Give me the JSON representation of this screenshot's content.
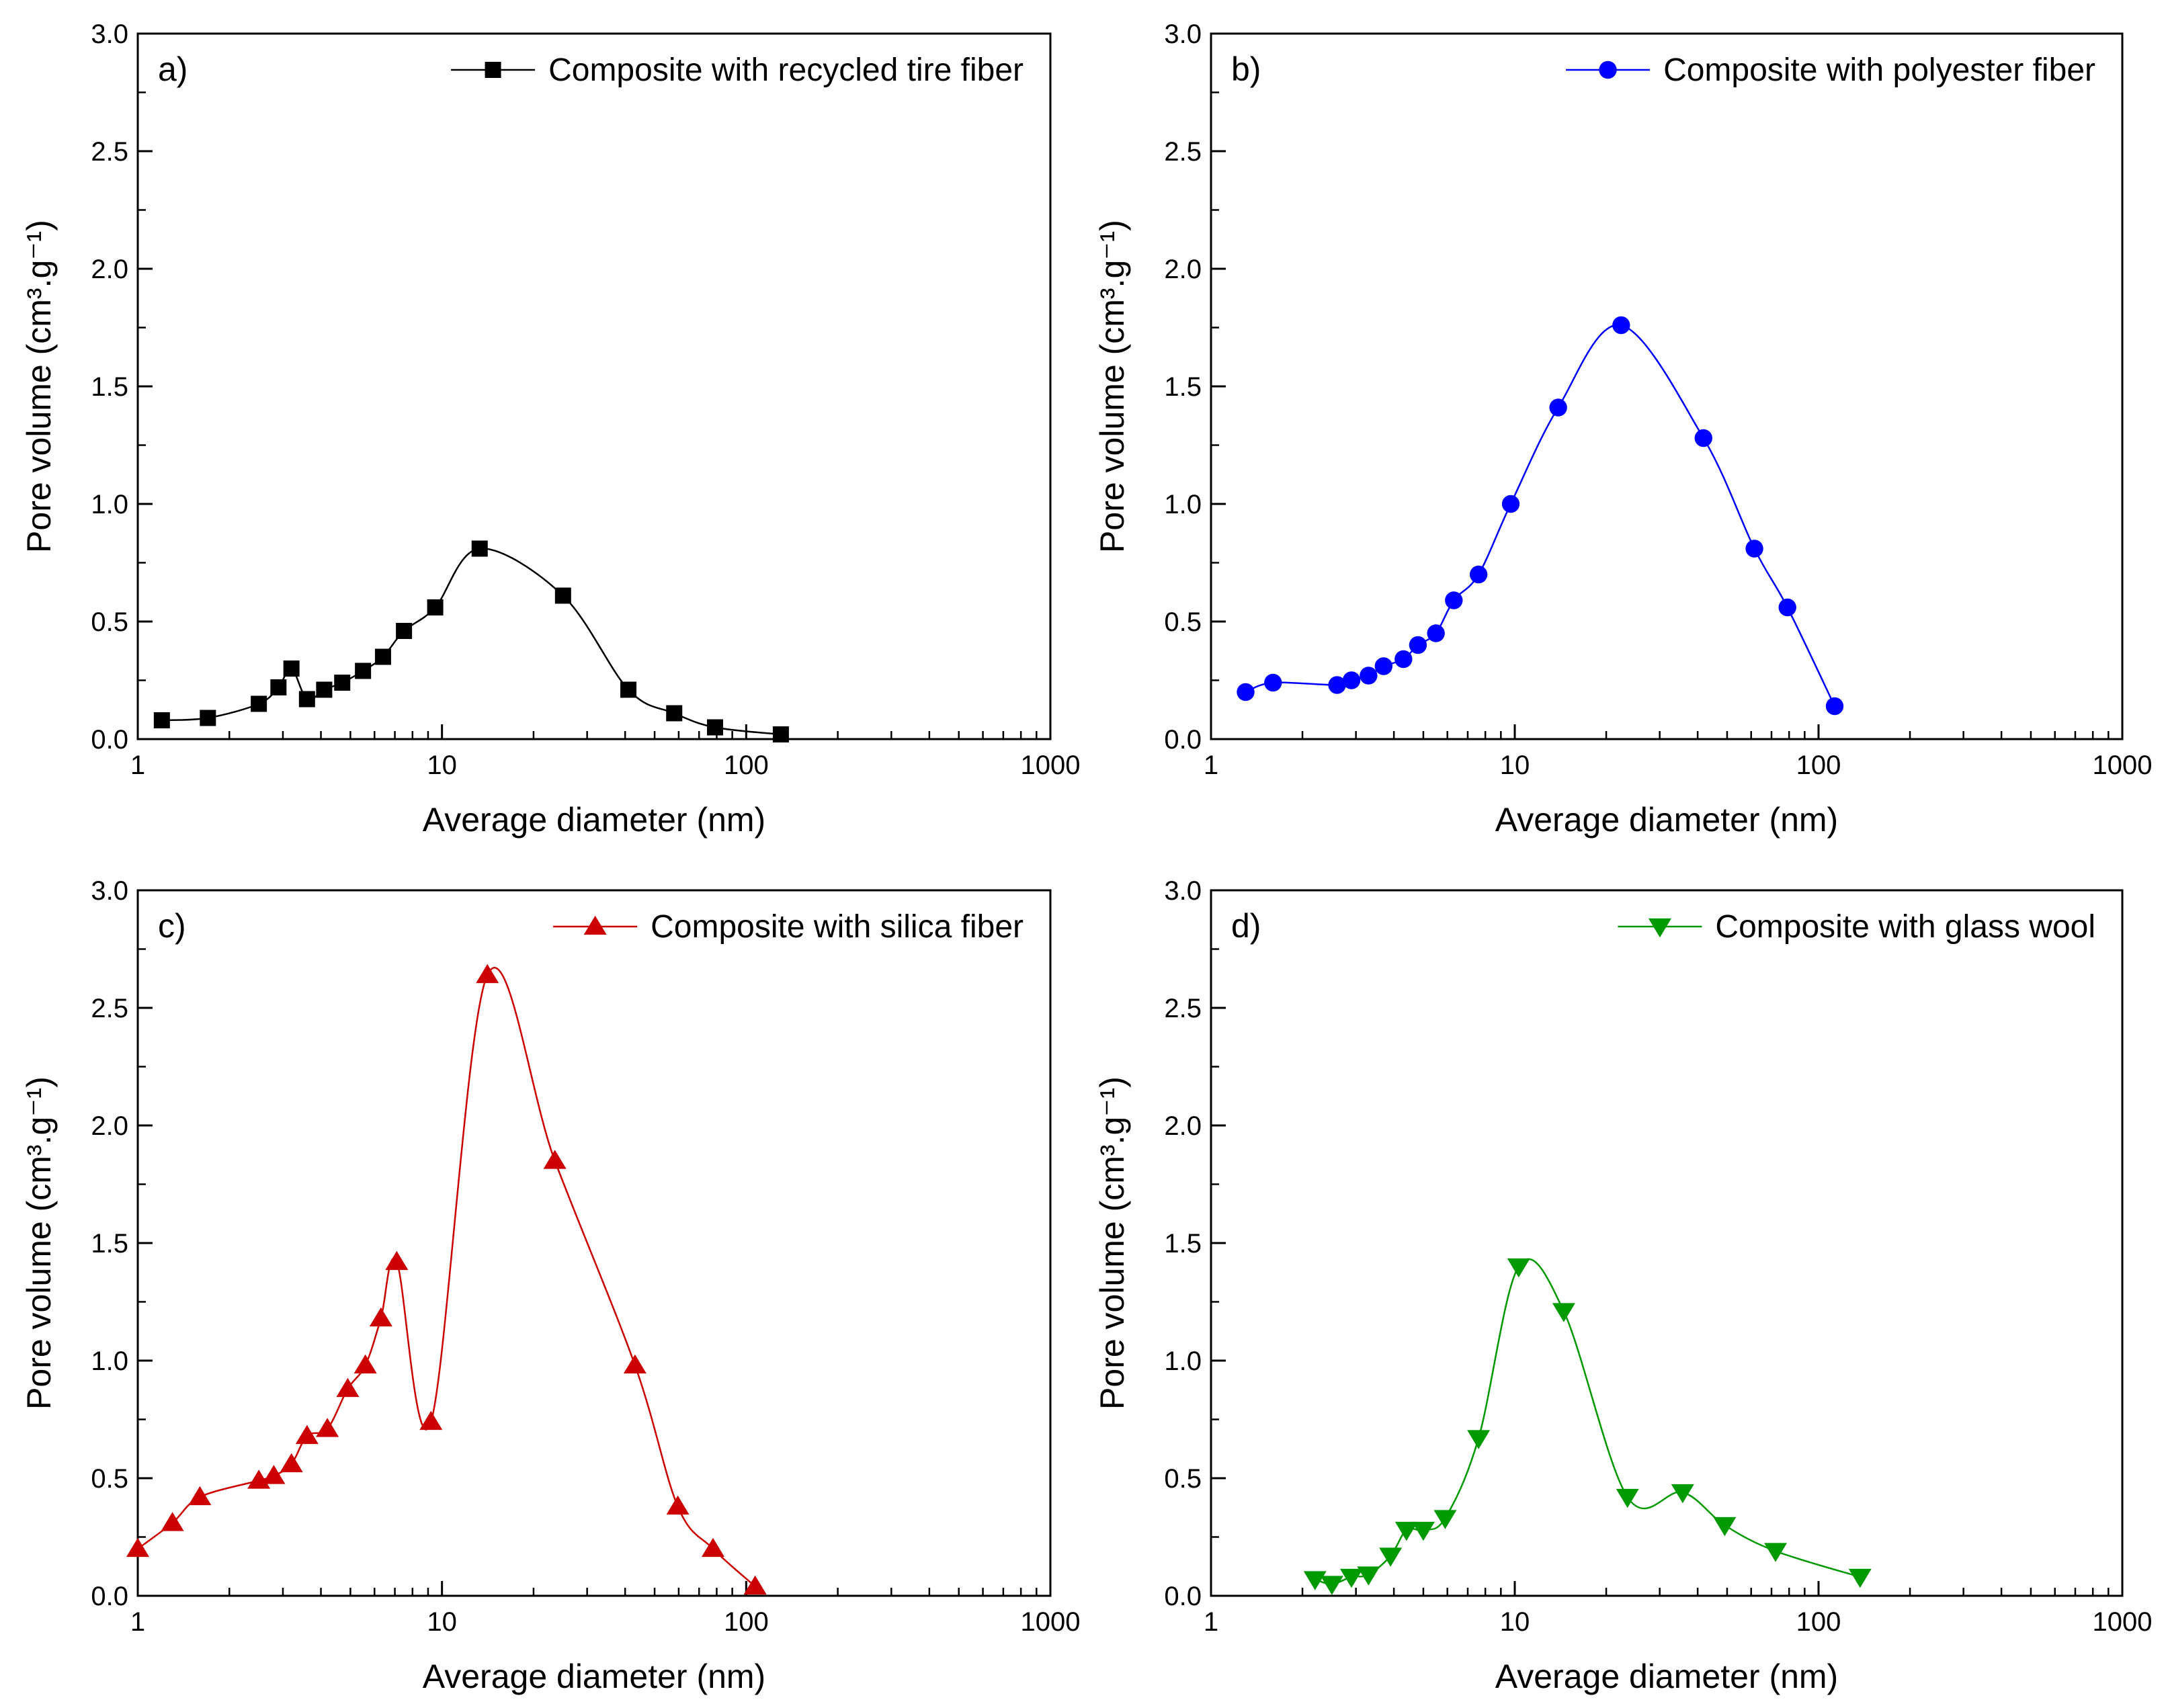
{
  "chart_data": [
    {
      "type": "line",
      "panel_label": "a)",
      "legend": "Composite with recycled tire fiber",
      "legend_position": "top-right",
      "marker": "square",
      "color": "#000000",
      "xlabel": "Average diameter (nm)",
      "ylabel": "Pore volume (cm³.g⁻¹)",
      "xscale": "log",
      "xlim": [
        1,
        1000
      ],
      "ylim": [
        0,
        3.0
      ],
      "x_ticks": [
        "1",
        "10",
        "100",
        "1000"
      ],
      "y_ticks": [
        "0.0",
        "0.5",
        "1.0",
        "1.5",
        "2.0",
        "2.5",
        "3.0"
      ],
      "x": [
        1.2,
        1.7,
        2.5,
        2.9,
        3.2,
        3.6,
        4.1,
        4.7,
        5.5,
        6.4,
        7.5,
        9.5,
        13.3,
        25,
        41,
        58,
        79,
        130
      ],
      "y": [
        0.08,
        0.09,
        0.15,
        0.22,
        0.3,
        0.17,
        0.21,
        0.24,
        0.29,
        0.35,
        0.46,
        0.56,
        0.81,
        0.61,
        0.21,
        0.11,
        0.05,
        0.02
      ]
    },
    {
      "type": "line",
      "panel_label": "b)",
      "legend": "Composite with polyester fiber",
      "legend_position": "top-right",
      "marker": "circle",
      "color": "#0000ff",
      "xlabel": "Average diameter (nm)",
      "ylabel": "Pore volume (cm³.g⁻¹)",
      "xscale": "log",
      "xlim": [
        1,
        1000
      ],
      "ylim": [
        0,
        3.0
      ],
      "x_ticks": [
        "1",
        "10",
        "100",
        "1000"
      ],
      "y_ticks": [
        "0.0",
        "0.5",
        "1.0",
        "1.5",
        "2.0",
        "2.5",
        "3.0"
      ],
      "x": [
        1.3,
        1.6,
        2.6,
        2.9,
        3.3,
        3.7,
        4.3,
        4.8,
        5.5,
        6.3,
        7.6,
        9.7,
        13.9,
        22.4,
        41.8,
        61.5,
        79,
        113
      ],
      "y": [
        0.2,
        0.24,
        0.23,
        0.25,
        0.27,
        0.31,
        0.34,
        0.4,
        0.45,
        0.59,
        0.7,
        1.0,
        1.41,
        1.76,
        1.28,
        0.81,
        0.56,
        0.14
      ]
    },
    {
      "type": "line",
      "panel_label": "c)",
      "legend": "Composite with silica fiber",
      "legend_position": "top-right",
      "marker": "triangle-up",
      "color": "#cc0000",
      "xlabel": "Average diameter (nm)",
      "ylabel": "Pore volume (cm³.g⁻¹)",
      "xscale": "log",
      "xlim": [
        1,
        1000
      ],
      "ylim": [
        0,
        3.0
      ],
      "x_ticks": [
        "1",
        "10",
        "100",
        "1000"
      ],
      "y_ticks": [
        "0.0",
        "0.5",
        "1.0",
        "1.5",
        "2.0",
        "2.5",
        "3.0"
      ],
      "x": [
        1.0,
        1.3,
        1.6,
        2.5,
        2.8,
        3.2,
        3.6,
        4.2,
        4.9,
        5.6,
        6.3,
        7.1,
        9.2,
        14.1,
        23.5,
        43.1,
        59.6,
        77.8,
        107
      ],
      "y": [
        0.2,
        0.31,
        0.42,
        0.49,
        0.51,
        0.56,
        0.68,
        0.71,
        0.88,
        0.98,
        1.18,
        1.42,
        0.74,
        2.64,
        1.85,
        0.98,
        0.38,
        0.2,
        0.04
      ]
    },
    {
      "type": "line",
      "panel_label": "d)",
      "legend": "Composite with glass wool",
      "legend_position": "top-right",
      "marker": "triangle-down",
      "color": "#009900",
      "xlabel": "Average diameter (nm)",
      "ylabel": "Pore volume (cm³.g⁻¹)",
      "xscale": "log",
      "xlim": [
        1,
        1000
      ],
      "ylim": [
        0,
        3.0
      ],
      "x_ticks": [
        "1",
        "10",
        "100",
        "1000"
      ],
      "y_ticks": [
        "0.0",
        "0.5",
        "1.0",
        "1.5",
        "2.0",
        "2.5",
        "3.0"
      ],
      "x": [
        2.2,
        2.5,
        2.9,
        3.3,
        3.9,
        4.4,
        5.0,
        5.9,
        7.6,
        10.3,
        14.5,
        23.5,
        35.7,
        49.1,
        72.2,
        137
      ],
      "y": [
        0.07,
        0.05,
        0.08,
        0.09,
        0.17,
        0.28,
        0.28,
        0.33,
        0.67,
        1.4,
        1.21,
        0.42,
        0.44,
        0.3,
        0.19,
        0.08
      ]
    }
  ]
}
